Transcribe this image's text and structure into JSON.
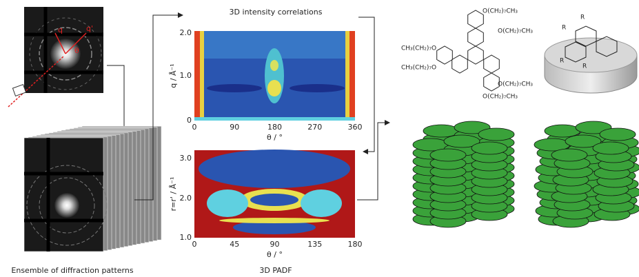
{
  "panels": {
    "diffraction": {
      "labels": [
        "q",
        "q'",
        "θ"
      ],
      "caption": "Ensemble of diffraction patterns"
    },
    "correlations": {
      "title": "3D intensity correlations",
      "y_label": "q / Å⁻¹",
      "x_label": "θ / °",
      "x_ticks": [
        "0",
        "90",
        "180",
        "270",
        "360"
      ],
      "y_ticks": [
        "0",
        "1.0",
        "2.0"
      ]
    },
    "padf": {
      "caption": "3D PADF",
      "y_label": "r=r' / Å⁻¹",
      "x_label": "θ / °",
      "x_ticks": [
        "0",
        "45",
        "90",
        "135",
        "180"
      ],
      "y_ticks": [
        "1.0",
        "2.0",
        "3.0"
      ]
    },
    "molecule": {
      "substituents": [
        "O(CH₂)₇CH₃",
        "O(CH₂)₇CH₃",
        "CH₃(CH₂)₇O",
        "CH₃(CH₂)₇O",
        "O(CH₂)₇CH₃",
        "O(CH₂)₇CH₃"
      ],
      "r_labels": [
        "R",
        "R",
        "R",
        "R"
      ]
    }
  }
}
